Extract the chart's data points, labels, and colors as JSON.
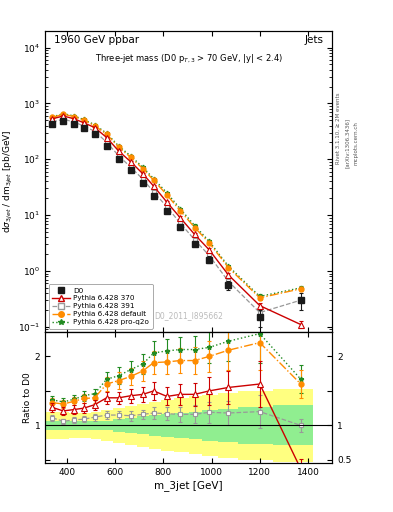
{
  "title_main": "1960 GeV ppbar",
  "title_right": "Jets",
  "annotation": "Three-jet mass (D0 p$_{T,3}$ > 70 GeV, |y| < 2.4)",
  "watermark": "D0_2011_I895662",
  "ylabel_main": "dσ_3jet / dm_3jet [pb/GeV]",
  "ylabel_ratio": "Ratio to D0",
  "xlabel": "m_3jet [GeV]",
  "right_label_1": "Rivet 3.1.10, ≥ 2M events",
  "right_label_2": "[arXiv:1306.3436]",
  "right_label_3": "mcplots.cern.ch",
  "x_d0": [
    340,
    385,
    430,
    470,
    515,
    565,
    615,
    665,
    715,
    760,
    815,
    870,
    930,
    990,
    1070,
    1200,
    1370
  ],
  "y_d0": [
    420,
    490,
    430,
    360,
    285,
    175,
    100,
    63,
    38,
    22,
    12,
    6.2,
    3.1,
    1.6,
    0.55,
    0.15,
    0.3
  ],
  "yerr_d0": [
    25,
    28,
    24,
    20,
    17,
    11,
    7,
    4.5,
    3.0,
    1.8,
    1.0,
    0.6,
    0.35,
    0.22,
    0.1,
    0.05,
    0.1
  ],
  "x_py370": [
    340,
    385,
    430,
    470,
    515,
    565,
    615,
    665,
    715,
    760,
    815,
    870,
    930,
    990,
    1070,
    1200,
    1370
  ],
  "y_py370": [
    530,
    595,
    530,
    450,
    370,
    245,
    140,
    90,
    55,
    33,
    17,
    9.0,
    4.5,
    2.4,
    0.85,
    0.24,
    0.11
  ],
  "yerr_py370": [
    15,
    17,
    15,
    13,
    11,
    8,
    5,
    4,
    2.5,
    1.7,
    0.9,
    0.5,
    0.3,
    0.18,
    0.07,
    0.03,
    0.015
  ],
  "x_py391": [
    340,
    385,
    430,
    470,
    515,
    565,
    615,
    665,
    715,
    760,
    815,
    870,
    930,
    990,
    1070,
    1200,
    1370
  ],
  "y_py391": [
    465,
    520,
    465,
    392,
    318,
    202,
    115,
    72,
    44,
    26,
    14,
    7.2,
    3.6,
    1.9,
    0.65,
    0.18,
    0.3
  ],
  "yerr_py391": [
    12,
    13,
    12,
    10,
    9,
    6,
    4,
    3,
    2.0,
    1.3,
    0.7,
    0.4,
    0.25,
    0.15,
    0.055,
    0.025,
    0.03
  ],
  "x_pydef": [
    340,
    385,
    430,
    470,
    515,
    565,
    615,
    665,
    715,
    760,
    815,
    870,
    930,
    990,
    1070,
    1200,
    1370
  ],
  "y_pydef": [
    560,
    640,
    580,
    500,
    400,
    280,
    165,
    108,
    68,
    42,
    23,
    12,
    6.0,
    3.2,
    1.15,
    0.33,
    0.48
  ],
  "yerr_pydef": [
    14,
    15,
    14,
    12,
    10,
    7.5,
    5.5,
    4,
    3,
    2,
    1.1,
    0.6,
    0.35,
    0.2,
    0.08,
    0.03,
    0.04
  ],
  "x_pyq2o": [
    340,
    385,
    430,
    470,
    515,
    565,
    615,
    665,
    715,
    760,
    815,
    870,
    930,
    990,
    1070,
    1200,
    1370
  ],
  "y_pyq2o": [
    575,
    655,
    595,
    515,
    415,
    292,
    172,
    114,
    72,
    45,
    25,
    13,
    6.5,
    3.4,
    1.22,
    0.35,
    0.5
  ],
  "yerr_pyq2o": [
    14,
    15,
    14,
    12,
    10,
    7.5,
    5.5,
    4,
    3,
    2,
    1.1,
    0.6,
    0.35,
    0.2,
    0.08,
    0.03,
    0.04
  ],
  "ratio_x": [
    340,
    385,
    430,
    470,
    515,
    565,
    615,
    665,
    715,
    760,
    815,
    870,
    930,
    990,
    1070,
    1200,
    1370
  ],
  "ratio_py370": [
    1.26,
    1.21,
    1.23,
    1.25,
    1.3,
    1.4,
    1.4,
    1.43,
    1.45,
    1.5,
    1.42,
    1.45,
    1.45,
    1.5,
    1.55,
    1.6,
    0.37
  ],
  "ratio_py391": [
    1.11,
    1.06,
    1.08,
    1.09,
    1.12,
    1.15,
    1.15,
    1.14,
    1.16,
    1.18,
    1.17,
    1.16,
    1.16,
    1.19,
    1.18,
    1.2,
    1.0
  ],
  "ratio_pydef": [
    1.33,
    1.31,
    1.35,
    1.39,
    1.4,
    1.6,
    1.65,
    1.71,
    1.79,
    1.91,
    1.92,
    1.94,
    1.94,
    2.0,
    2.09,
    2.2,
    1.6
  ],
  "ratio_pyq2o": [
    1.37,
    1.34,
    1.38,
    1.43,
    1.46,
    1.67,
    1.72,
    1.81,
    1.89,
    2.05,
    2.08,
    2.1,
    2.1,
    2.13,
    2.22,
    2.33,
    1.67
  ],
  "ratio_err_py370": [
    0.07,
    0.06,
    0.06,
    0.07,
    0.07,
    0.09,
    0.09,
    0.1,
    0.11,
    0.13,
    0.13,
    0.15,
    0.17,
    0.2,
    0.24,
    0.34,
    0.15
  ],
  "ratio_err_py391": [
    0.04,
    0.04,
    0.04,
    0.04,
    0.05,
    0.06,
    0.06,
    0.07,
    0.07,
    0.09,
    0.09,
    0.11,
    0.13,
    0.15,
    0.17,
    0.24,
    0.1
  ],
  "ratio_err_pydef": [
    0.06,
    0.06,
    0.06,
    0.07,
    0.07,
    0.1,
    0.12,
    0.12,
    0.14,
    0.17,
    0.17,
    0.18,
    0.2,
    0.23,
    0.28,
    0.4,
    0.2
  ],
  "ratio_err_pyq2o": [
    0.06,
    0.06,
    0.06,
    0.07,
    0.07,
    0.1,
    0.12,
    0.12,
    0.14,
    0.17,
    0.17,
    0.18,
    0.2,
    0.23,
    0.28,
    0.42,
    0.2
  ],
  "band_x_edges": [
    310,
    410,
    455,
    500,
    540,
    590,
    640,
    690,
    740,
    790,
    845,
    905,
    960,
    1025,
    1110,
    1255,
    1420
  ],
  "band_green_low": [
    0.93,
    0.93,
    0.93,
    0.93,
    0.93,
    0.91,
    0.89,
    0.87,
    0.85,
    0.83,
    0.82,
    0.8,
    0.78,
    0.76,
    0.73,
    0.71,
    0.71
  ],
  "band_green_high": [
    1.07,
    1.07,
    1.07,
    1.07,
    1.07,
    1.09,
    1.11,
    1.13,
    1.15,
    1.17,
    1.18,
    1.2,
    1.22,
    1.24,
    1.27,
    1.29,
    1.29
  ],
  "band_yellow_low": [
    0.8,
    0.82,
    0.82,
    0.8,
    0.78,
    0.75,
    0.72,
    0.69,
    0.66,
    0.63,
    0.61,
    0.58,
    0.56,
    0.53,
    0.5,
    0.47,
    0.47
  ],
  "band_yellow_high": [
    1.2,
    1.18,
    1.18,
    1.2,
    1.22,
    1.25,
    1.28,
    1.31,
    1.34,
    1.37,
    1.39,
    1.42,
    1.44,
    1.47,
    1.5,
    1.53,
    1.53
  ],
  "color_d0": "#1a1a1a",
  "color_py370": "#cc0000",
  "color_py391": "#999999",
  "color_pydef": "#ff8c00",
  "color_pyq2o": "#228b22",
  "color_band_green": "#90ee90",
  "color_band_yellow": "#ffff80",
  "xlim": [
    310,
    1500
  ],
  "ylim_main": [
    0.08,
    20000
  ],
  "ylim_ratio": [
    0.45,
    2.35
  ]
}
